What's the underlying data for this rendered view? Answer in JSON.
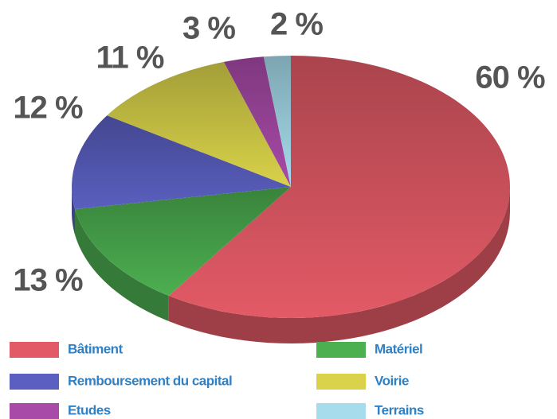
{
  "chart_data": {
    "type": "pie",
    "categories": [
      "Bâtiment",
      "Matériel",
      "Remboursement du capital",
      "Voirie",
      "Etudes",
      "Terrains"
    ],
    "values": [
      60,
      13,
      12,
      11,
      3,
      2
    ],
    "value_labels": [
      "60 %",
      "13 %",
      "12 %",
      "11 %",
      "3 %",
      "2 %"
    ],
    "colors": [
      "#e25a66",
      "#4caf50",
      "#5a5fc0",
      "#d9d24a",
      "#a84aa8",
      "#a6dcec"
    ]
  }
}
